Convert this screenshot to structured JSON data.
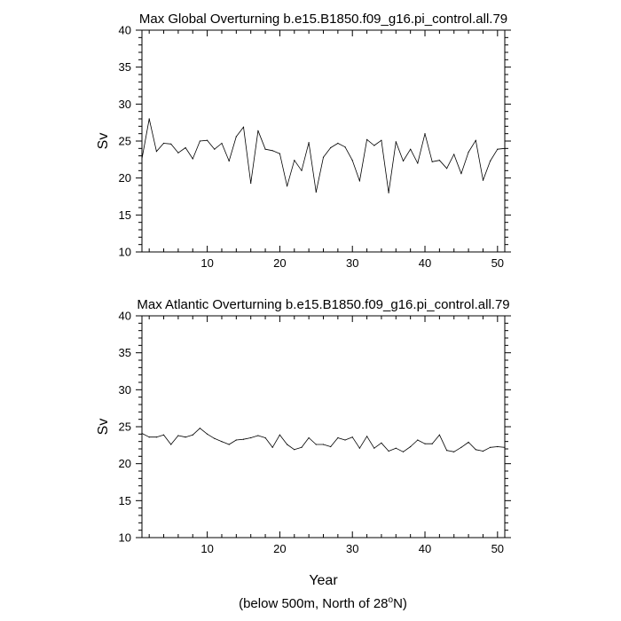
{
  "chart_data": [
    {
      "type": "line",
      "title": "Max Global Overturning b.e15.B1850.f09_g16.pi_control.all.79",
      "xlabel": "",
      "ylabel": "Sv",
      "xlim": [
        1,
        51
      ],
      "ylim": [
        10,
        40
      ],
      "xticks": [
        10,
        20,
        30,
        40,
        50
      ],
      "yticks": [
        10,
        15,
        20,
        25,
        30,
        35,
        40
      ],
      "grid": false,
      "series": [
        {
          "x": [
            1,
            2,
            3,
            4,
            5,
            6,
            7,
            8,
            9,
            10,
            11,
            12,
            13,
            14,
            15,
            16,
            17,
            18,
            19,
            20,
            21,
            22,
            23,
            24,
            25,
            26,
            27,
            28,
            29,
            30,
            31,
            32,
            33,
            34,
            35,
            36,
            37,
            38,
            39,
            40,
            41,
            42,
            43,
            44,
            45,
            46,
            47,
            48,
            49,
            50,
            51
          ],
          "values": [
            22.6,
            28.0,
            23.6,
            24.7,
            24.6,
            23.4,
            24.1,
            22.6,
            25.0,
            25.1,
            23.9,
            24.7,
            22.3,
            25.6,
            26.9,
            19.3,
            26.4,
            23.9,
            23.7,
            23.3,
            18.9,
            22.4,
            21.0,
            24.8,
            18.1,
            22.8,
            24.1,
            24.7,
            24.2,
            22.4,
            19.6,
            25.2,
            24.4,
            25.1,
            18.0,
            24.9,
            22.3,
            23.9,
            22.0,
            26.0,
            22.2,
            22.4,
            21.3,
            23.2,
            20.6,
            23.5,
            25.1,
            19.7,
            22.3,
            23.9,
            24.0
          ]
        }
      ]
    },
    {
      "type": "line",
      "title": "Max Atlantic Overturning b.e15.B1850.f09_g16.pi_control.all.79",
      "xlabel": "Year",
      "ylabel": "Sv",
      "xlim": [
        1,
        51
      ],
      "ylim": [
        10,
        40
      ],
      "xticks": [
        10,
        20,
        30,
        40,
        50
      ],
      "yticks": [
        10,
        15,
        20,
        25,
        30,
        35,
        40
      ],
      "grid": false,
      "series": [
        {
          "x": [
            1,
            2,
            3,
            4,
            5,
            6,
            7,
            8,
            9,
            10,
            11,
            12,
            13,
            14,
            15,
            16,
            17,
            18,
            19,
            20,
            21,
            22,
            23,
            24,
            25,
            26,
            27,
            28,
            29,
            30,
            31,
            32,
            33,
            34,
            35,
            36,
            37,
            38,
            39,
            40,
            41,
            42,
            43,
            44,
            45,
            46,
            47,
            48,
            49,
            50,
            51
          ],
          "values": [
            24.1,
            23.6,
            23.6,
            23.9,
            22.6,
            23.8,
            23.6,
            23.9,
            24.8,
            24.0,
            23.4,
            23.0,
            22.6,
            23.2,
            23.3,
            23.5,
            23.8,
            23.5,
            22.2,
            23.9,
            22.6,
            21.9,
            22.2,
            23.5,
            22.6,
            22.6,
            22.3,
            23.5,
            23.2,
            23.6,
            22.1,
            23.7,
            22.1,
            22.8,
            21.7,
            22.1,
            21.6,
            22.3,
            23.2,
            22.7,
            22.7,
            23.9,
            21.8,
            21.6,
            22.2,
            22.9,
            21.9,
            21.7,
            22.2,
            22.3,
            22.2
          ]
        }
      ]
    }
  ],
  "footnote": {
    "prefix": "(below 500m, North of 28",
    "superscript": "o",
    "suffix": "N)"
  }
}
